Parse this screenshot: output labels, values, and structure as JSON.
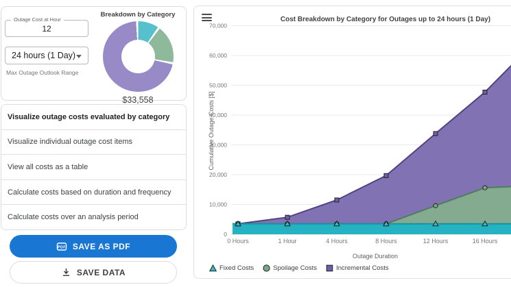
{
  "left_panel": {
    "controls_card": {
      "cost_input": {
        "label": "Outage Cost at Hour",
        "value": "12"
      },
      "range_select": {
        "value": "24 hours (1 Day)",
        "helper_text": "Max Outage Outlook Range"
      },
      "donut": {
        "title": "Breakdown by Category",
        "total_label": "$33,558",
        "segments": [
          {
            "name": "Fixed Costs",
            "color": "#58bfcc",
            "fraction": 0.104
          },
          {
            "name": "Spoilage Costs",
            "color": "#8fb99b",
            "fraction": 0.182
          },
          {
            "name": "Incremental Costs",
            "color": "#978ac7",
            "fraction": 0.714
          }
        ]
      }
    },
    "menu": {
      "items": [
        {
          "label": "Visualize outage costs evaluated by category",
          "selected": true
        },
        {
          "label": "Visualize individual outage cost items",
          "selected": false
        },
        {
          "label": "View all costs as a table",
          "selected": false
        },
        {
          "label": "Calculate costs based on duration and frequency",
          "selected": false
        },
        {
          "label": "Calculate costs over an analysis period",
          "selected": false
        }
      ]
    },
    "actions": {
      "save_pdf_label": "SAVE AS PDF",
      "save_pdf_icon": "pdf-icon",
      "save_data_label": "SAVE DATA",
      "save_data_icon": "download-icon",
      "primary_color": "#1976d2"
    }
  },
  "chart_card": {
    "menu_icon": "hamburger-icon"
  },
  "chart_data": {
    "type": "area",
    "stacked": true,
    "title": "Cost Breakdown by Category for Outages up to 24 hours (1 Day)",
    "xlabel": "Outage Duration",
    "ylabel": "Cumulative Outage Costs [$]",
    "categories": [
      "0 Hours",
      "1 Hour",
      "4 Hours",
      "8 Hours",
      "12 Hours",
      "16 Hours"
    ],
    "ylim": [
      0,
      70000
    ],
    "ytick_step": 10000,
    "ytick_labels": [
      "0",
      "10,000",
      "20,000",
      "30,000",
      "40,000",
      "50,000",
      "60,000",
      "70,000"
    ],
    "grid": true,
    "legend_position": "bottom",
    "clipped_at_right_edge": true,
    "series": [
      {
        "name": "Fixed Costs",
        "marker": "triangle",
        "area_color": "#25b2c2",
        "line_color": "#1794a3",
        "marker_fill": "#35bac8",
        "marker_stroke": "#222222",
        "values_cumulative_top": [
          3500,
          3500,
          3500,
          3500,
          3500,
          3500
        ],
        "value_at_clip_edge": 3500
      },
      {
        "name": "Spoilage Costs",
        "marker": "circle",
        "area_color": "#84ab8f",
        "line_color": "#4e7d5d",
        "marker_fill": "#79a787",
        "marker_stroke": "#222222",
        "values_cumulative_top": [
          3500,
          3500,
          3500,
          3500,
          9600,
          15600
        ],
        "value_at_clip_edge": 16000
      },
      {
        "name": "Incremental Costs",
        "marker": "square",
        "area_color": "#8172b4",
        "line_color": "#53427f",
        "marker_fill": "#6e5dab",
        "marker_stroke": "#222222",
        "values_cumulative_top": [
          3500,
          5700,
          11500,
          19700,
          33800,
          47700
        ],
        "value_at_clip_edge": 57000
      }
    ]
  }
}
